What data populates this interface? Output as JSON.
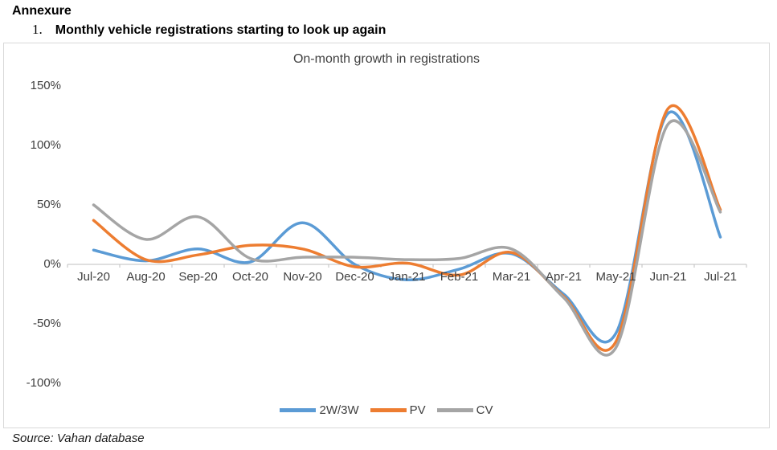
{
  "header": {
    "annexure": "Annexure",
    "item_number": "1.",
    "item_title": "Monthly vehicle registrations starting to look up again"
  },
  "chart": {
    "title": "On-month growth in registrations"
  },
  "source": "Source: Vahan database",
  "colors": {
    "blue": "#5B9BD5",
    "orange": "#ED7D31",
    "gray": "#A5A5A5",
    "axis_line": "#BFBFBF",
    "frame_border": "#D9D9D9",
    "label_text": "#404040"
  },
  "chart_data": {
    "type": "line",
    "smooth": true,
    "title": "On-month growth in registrations",
    "xlabel": "",
    "ylabel": "",
    "grid": false,
    "legend_position": "bottom",
    "categories": [
      "Jul-20",
      "Aug-20",
      "Sep-20",
      "Oct-20",
      "Nov-20",
      "Dec-20",
      "Jan-21",
      "Feb-21",
      "Mar-21",
      "Apr-21",
      "May-21",
      "Jun-21",
      "Jul-21"
    ],
    "y_ticks": [
      "150%",
      "100%",
      "50%",
      "0%",
      "-50%",
      "-100%"
    ],
    "y_tick_values": [
      150,
      100,
      50,
      0,
      -50,
      -100
    ],
    "ylim": [
      -115,
      165
    ],
    "unit": "percent",
    "series": [
      {
        "name": "2W/3W",
        "color": "#5B9BD5",
        "values": [
          12,
          3,
          13,
          2,
          35,
          0,
          -13,
          -4,
          9,
          -25,
          -58,
          127,
          23
        ]
      },
      {
        "name": "PV",
        "color": "#ED7D31",
        "values": [
          37,
          4,
          8,
          16,
          13,
          -2,
          1,
          -9,
          10,
          -27,
          -65,
          131,
          46
        ]
      },
      {
        "name": "CV",
        "color": "#A5A5A5",
        "values": [
          50,
          21,
          40,
          5,
          6,
          6,
          4,
          5,
          13,
          -28,
          -70,
          118,
          44
        ]
      }
    ]
  }
}
